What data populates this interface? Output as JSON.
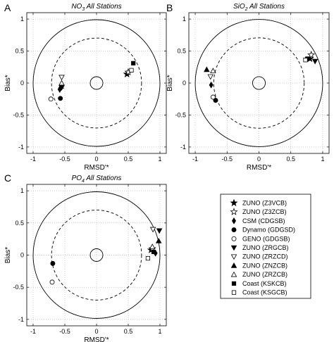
{
  "legend": [
    {
      "label": "ZUNO (Z3VCB)",
      "marker": "star",
      "fill": "black"
    },
    {
      "label": "ZUNO (Z3ZCB)",
      "marker": "star",
      "fill": "white"
    },
    {
      "label": "CSM (CDGSB)",
      "marker": "diamond",
      "fill": "black"
    },
    {
      "label": "Dynamo (GDGSD)",
      "marker": "circle",
      "fill": "black"
    },
    {
      "label": "GENO (GDGSB)",
      "marker": "circle",
      "fill": "white"
    },
    {
      "label": "ZUNO (ZRGCB)",
      "marker": "tri-down",
      "fill": "black"
    },
    {
      "label": "ZUNO (ZRZCD)",
      "marker": "tri-down",
      "fill": "white"
    },
    {
      "label": "ZUNO (ZNZCB)",
      "marker": "tri-up",
      "fill": "black"
    },
    {
      "label": "ZUNO (ZRZCB)",
      "marker": "tri-up",
      "fill": "white"
    },
    {
      "label": "Coast (KSKCB)",
      "marker": "square",
      "fill": "black"
    },
    {
      "label": "Coast (KSGCB)",
      "marker": "square",
      "fill": "white"
    }
  ],
  "chart_data": [
    {
      "type": "scatter",
      "panel_label": "A",
      "title_sym": "NO",
      "title_sub": "3",
      "title_rest": " All Stations",
      "xlabel": "RMSD'*",
      "ylabel": "Bias*",
      "xlim": [
        -1.1,
        1.1
      ],
      "ylim": [
        -1.1,
        1.1
      ],
      "xticks": [
        "-1",
        "-0.5",
        "0",
        "0.5",
        "1"
      ],
      "yticks": [
        "1",
        "0.5",
        "0",
        "-0.5",
        "-1"
      ],
      "grid": true,
      "reference_circles": [
        0.1,
        0.71,
        1.0
      ],
      "points": [
        {
          "series": "ZUNO (Z3VCB)",
          "x": 0.48,
          "y": 0.14
        },
        {
          "series": "ZUNO (Z3ZCB)",
          "x": 0.5,
          "y": 0.17
        },
        {
          "series": "CSM (CDGSB)",
          "x": -0.58,
          "y": -0.1
        },
        {
          "series": "Dynamo (GDGSD)",
          "x": -0.57,
          "y": -0.24
        },
        {
          "series": "GENO (GDGSB)",
          "x": -0.72,
          "y": -0.25
        },
        {
          "series": "ZUNO (ZRGCB)",
          "x": -0.55,
          "y": -0.07
        },
        {
          "series": "ZUNO (ZRZCD)",
          "x": -0.55,
          "y": 0.09
        },
        {
          "series": "ZUNO (ZNZCB)",
          "x": -0.56,
          "y": -0.05
        },
        {
          "series": "ZUNO (ZRZCB)",
          "x": -0.55,
          "y": 0.0
        },
        {
          "series": "Coast (KSKCB)",
          "x": 0.58,
          "y": 0.31
        },
        {
          "series": "Coast (KSGCB)",
          "x": 0.55,
          "y": 0.2
        }
      ]
    },
    {
      "type": "scatter",
      "panel_label": "B",
      "title_sym": "SiO",
      "title_sub": "2",
      "title_rest": " All Stations",
      "xlabel": "RMSD'*",
      "ylabel": "Bias*",
      "xlim": [
        -1.1,
        1.1
      ],
      "ylim": [
        -1.1,
        1.1
      ],
      "xticks": [
        "-1",
        "-0.5",
        "0",
        "0.5",
        "1"
      ],
      "yticks": [
        "1",
        "0.5",
        "0",
        "-0.5",
        "-1"
      ],
      "grid": true,
      "reference_circles": [
        0.1,
        0.71,
        1.0
      ],
      "points": [
        {
          "series": "ZUNO (Z3VCB)",
          "x": 0.8,
          "y": 0.38
        },
        {
          "series": "ZUNO (Z3ZCB)",
          "x": 0.82,
          "y": 0.44
        },
        {
          "series": "CSM (CDGSB)",
          "x": -0.75,
          "y": -0.03
        },
        {
          "series": "Dynamo (GDGSD)",
          "x": -0.68,
          "y": -0.27
        },
        {
          "series": "GENO (GDGSB)",
          "x": -0.72,
          "y": -0.22
        },
        {
          "series": "ZUNO (ZRGCB)",
          "x": 0.88,
          "y": 0.34
        },
        {
          "series": "ZUNO (ZRZCD)",
          "x": -0.76,
          "y": 0.1
        },
        {
          "series": "ZUNO (ZNZCB)",
          "x": -0.82,
          "y": 0.21
        },
        {
          "series": "ZUNO (ZRZCB)",
          "x": -0.72,
          "y": 0.19
        },
        {
          "series": "Coast (KSKCB)",
          "x": 0.76,
          "y": 0.38
        },
        {
          "series": "Coast (KSGCB)",
          "x": 0.73,
          "y": 0.36
        }
      ]
    },
    {
      "type": "scatter",
      "panel_label": "C",
      "title_sym": "PO",
      "title_sub": "4",
      "title_rest": " All Stations",
      "xlabel": "RMSD'*",
      "ylabel": "Bias*",
      "xlim": [
        -1.1,
        1.1
      ],
      "ylim": [
        -1.1,
        1.1
      ],
      "xticks": [
        "-1",
        "-0.5",
        "0",
        "0.5",
        "1"
      ],
      "yticks": [
        "1",
        "0.5",
        "0",
        "-0.5",
        "-1"
      ],
      "grid": true,
      "reference_circles": [
        0.1,
        0.71,
        1.0
      ],
      "points": [
        {
          "series": "ZUNO (Z3VCB)",
          "x": 0.86,
          "y": 0.08
        },
        {
          "series": "ZUNO (Z3ZCB)",
          "x": 0.88,
          "y": 0.1
        },
        {
          "series": "CSM (CDGSB)",
          "x": 0.93,
          "y": 0.03
        },
        {
          "series": "Dynamo (GDGSD)",
          "x": -0.69,
          "y": -0.13
        },
        {
          "series": "GENO (GDGSB)",
          "x": -0.7,
          "y": -0.42
        },
        {
          "series": "ZUNO (ZRGCB)",
          "x": 0.99,
          "y": 0.38
        },
        {
          "series": "ZUNO (ZRZCD)",
          "x": 0.89,
          "y": 0.4
        },
        {
          "series": "ZUNO (ZNZCB)",
          "x": 0.98,
          "y": 0.22
        },
        {
          "series": "ZUNO (ZRZCB)",
          "x": 0.88,
          "y": 0.13
        },
        {
          "series": "Coast (KSKCB)",
          "x": 0.9,
          "y": 0.05
        },
        {
          "series": "Coast (KSGCB)",
          "x": 0.81,
          "y": -0.05
        }
      ]
    }
  ]
}
